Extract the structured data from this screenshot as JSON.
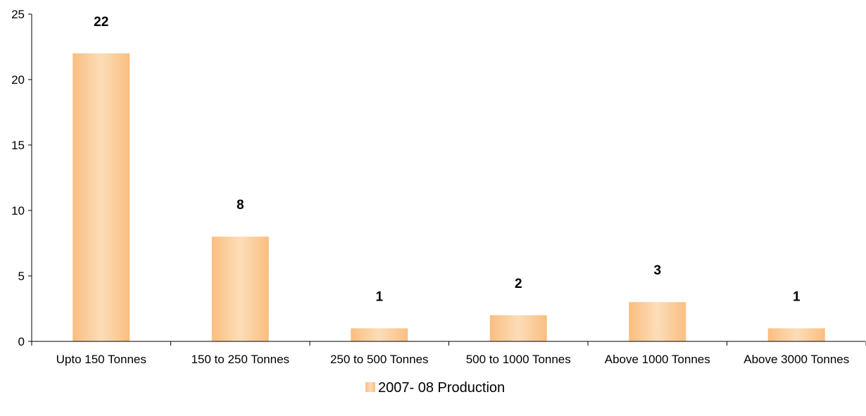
{
  "chart_data": {
    "type": "bar",
    "categories": [
      "Upto 150 Tonnes",
      "150 to 250 Tonnes",
      "250 to 500 Tonnes",
      "500 to 1000 Tonnes",
      "Above 1000 Tonnes",
      "Above 3000 Tonnes"
    ],
    "series": [
      {
        "name": "2007- 08 Production",
        "values": [
          22,
          8,
          1,
          2,
          3,
          1
        ]
      }
    ],
    "data_labels": [
      "22",
      "8",
      "1",
      "2",
      "3",
      "1"
    ],
    "y_ticks": [
      "0",
      "5",
      "10",
      "15",
      "20",
      "25"
    ],
    "ylim": [
      0,
      25
    ],
    "grid": false,
    "legend": "bottom-center",
    "colors": {
      "bar_light": "#FCDDB8",
      "bar_dark": "#F9BE80"
    }
  }
}
